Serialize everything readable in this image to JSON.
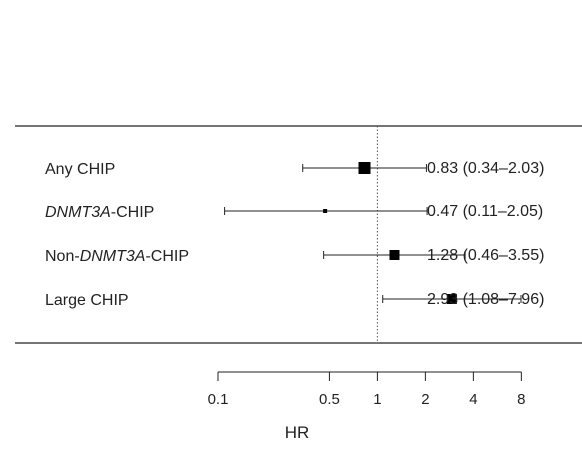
{
  "chart_data": {
    "type": "forest",
    "xscale": "log",
    "reference_line": 1,
    "xticks": [
      0.1,
      0.5,
      1,
      2,
      4,
      8
    ],
    "xtick_labels": [
      "0.1",
      "0.5",
      "1",
      "2",
      "4",
      "8"
    ],
    "xlabel": "HR",
    "rows": [
      {
        "label_parts": [
          {
            "text": "Any CHIP",
            "italic": false
          }
        ],
        "hr": 0.83,
        "lower": 0.34,
        "upper": 2.03,
        "value_text": "0.83 (0.34–2.03)",
        "marker": "large"
      },
      {
        "label_parts": [
          {
            "text": "DNMT3A",
            "italic": true
          },
          {
            "text": "-CHIP",
            "italic": false
          }
        ],
        "hr": 0.47,
        "lower": 0.11,
        "upper": 2.05,
        "value_text": "0.47 (0.11–2.05)",
        "marker": "tiny"
      },
      {
        "label_parts": [
          {
            "text": "Non-",
            "italic": false
          },
          {
            "text": "DNMT3A",
            "italic": true
          },
          {
            "text": "-CHIP",
            "italic": false
          }
        ],
        "hr": 1.28,
        "lower": 0.46,
        "upper": 3.55,
        "value_text": "1.28 (0.46–3.55)",
        "marker": "medium"
      },
      {
        "label_parts": [
          {
            "text": "Large CHIP",
            "italic": false
          }
        ],
        "hr": 2.93,
        "lower": 1.08,
        "upper": 7.96,
        "value_text": "2.93 (1.08–7.96)",
        "marker": "medium"
      }
    ]
  }
}
